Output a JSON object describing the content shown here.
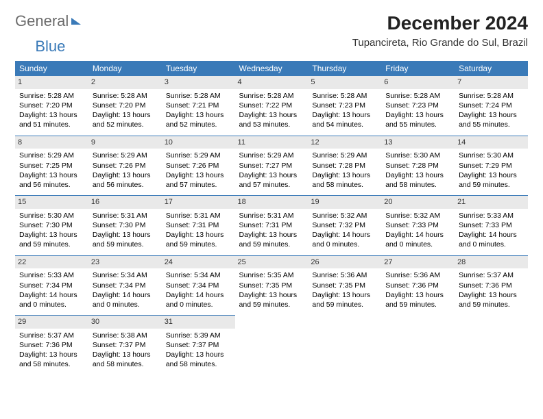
{
  "brand": {
    "part1": "General",
    "part2": "Blue"
  },
  "title": "December 2024",
  "location": "Tupancireta, Rio Grande do Sul, Brazil",
  "colors": {
    "header_bg": "#3a7ab8",
    "header_text": "#ffffff",
    "daynum_bg": "#e9e9e9",
    "rule": "#3a7ab8",
    "logo_gray": "#6b6b6b",
    "logo_blue": "#3a7ab8"
  },
  "typography": {
    "title_fontsize": 28,
    "location_fontsize": 15,
    "weekday_fontsize": 12,
    "cell_fontsize": 10.5
  },
  "weekdays": [
    "Sunday",
    "Monday",
    "Tuesday",
    "Wednesday",
    "Thursday",
    "Friday",
    "Saturday"
  ],
  "weeks": [
    [
      {
        "n": "1",
        "sr": "5:28 AM",
        "ss": "7:20 PM",
        "dl": "13 hours and 51 minutes."
      },
      {
        "n": "2",
        "sr": "5:28 AM",
        "ss": "7:20 PM",
        "dl": "13 hours and 52 minutes."
      },
      {
        "n": "3",
        "sr": "5:28 AM",
        "ss": "7:21 PM",
        "dl": "13 hours and 52 minutes."
      },
      {
        "n": "4",
        "sr": "5:28 AM",
        "ss": "7:22 PM",
        "dl": "13 hours and 53 minutes."
      },
      {
        "n": "5",
        "sr": "5:28 AM",
        "ss": "7:23 PM",
        "dl": "13 hours and 54 minutes."
      },
      {
        "n": "6",
        "sr": "5:28 AM",
        "ss": "7:23 PM",
        "dl": "13 hours and 55 minutes."
      },
      {
        "n": "7",
        "sr": "5:28 AM",
        "ss": "7:24 PM",
        "dl": "13 hours and 55 minutes."
      }
    ],
    [
      {
        "n": "8",
        "sr": "5:29 AM",
        "ss": "7:25 PM",
        "dl": "13 hours and 56 minutes."
      },
      {
        "n": "9",
        "sr": "5:29 AM",
        "ss": "7:26 PM",
        "dl": "13 hours and 56 minutes."
      },
      {
        "n": "10",
        "sr": "5:29 AM",
        "ss": "7:26 PM",
        "dl": "13 hours and 57 minutes."
      },
      {
        "n": "11",
        "sr": "5:29 AM",
        "ss": "7:27 PM",
        "dl": "13 hours and 57 minutes."
      },
      {
        "n": "12",
        "sr": "5:29 AM",
        "ss": "7:28 PM",
        "dl": "13 hours and 58 minutes."
      },
      {
        "n": "13",
        "sr": "5:30 AM",
        "ss": "7:28 PM",
        "dl": "13 hours and 58 minutes."
      },
      {
        "n": "14",
        "sr": "5:30 AM",
        "ss": "7:29 PM",
        "dl": "13 hours and 59 minutes."
      }
    ],
    [
      {
        "n": "15",
        "sr": "5:30 AM",
        "ss": "7:30 PM",
        "dl": "13 hours and 59 minutes."
      },
      {
        "n": "16",
        "sr": "5:31 AM",
        "ss": "7:30 PM",
        "dl": "13 hours and 59 minutes."
      },
      {
        "n": "17",
        "sr": "5:31 AM",
        "ss": "7:31 PM",
        "dl": "13 hours and 59 minutes."
      },
      {
        "n": "18",
        "sr": "5:31 AM",
        "ss": "7:31 PM",
        "dl": "13 hours and 59 minutes."
      },
      {
        "n": "19",
        "sr": "5:32 AM",
        "ss": "7:32 PM",
        "dl": "14 hours and 0 minutes."
      },
      {
        "n": "20",
        "sr": "5:32 AM",
        "ss": "7:33 PM",
        "dl": "14 hours and 0 minutes."
      },
      {
        "n": "21",
        "sr": "5:33 AM",
        "ss": "7:33 PM",
        "dl": "14 hours and 0 minutes."
      }
    ],
    [
      {
        "n": "22",
        "sr": "5:33 AM",
        "ss": "7:34 PM",
        "dl": "14 hours and 0 minutes."
      },
      {
        "n": "23",
        "sr": "5:34 AM",
        "ss": "7:34 PM",
        "dl": "14 hours and 0 minutes."
      },
      {
        "n": "24",
        "sr": "5:34 AM",
        "ss": "7:34 PM",
        "dl": "14 hours and 0 minutes."
      },
      {
        "n": "25",
        "sr": "5:35 AM",
        "ss": "7:35 PM",
        "dl": "13 hours and 59 minutes."
      },
      {
        "n": "26",
        "sr": "5:36 AM",
        "ss": "7:35 PM",
        "dl": "13 hours and 59 minutes."
      },
      {
        "n": "27",
        "sr": "5:36 AM",
        "ss": "7:36 PM",
        "dl": "13 hours and 59 minutes."
      },
      {
        "n": "28",
        "sr": "5:37 AM",
        "ss": "7:36 PM",
        "dl": "13 hours and 59 minutes."
      }
    ],
    [
      {
        "n": "29",
        "sr": "5:37 AM",
        "ss": "7:36 PM",
        "dl": "13 hours and 58 minutes."
      },
      {
        "n": "30",
        "sr": "5:38 AM",
        "ss": "7:37 PM",
        "dl": "13 hours and 58 minutes."
      },
      {
        "n": "31",
        "sr": "5:39 AM",
        "ss": "7:37 PM",
        "dl": "13 hours and 58 minutes."
      },
      null,
      null,
      null,
      null
    ]
  ],
  "labels": {
    "sunrise": "Sunrise: ",
    "sunset": "Sunset: ",
    "daylight": "Daylight: "
  }
}
